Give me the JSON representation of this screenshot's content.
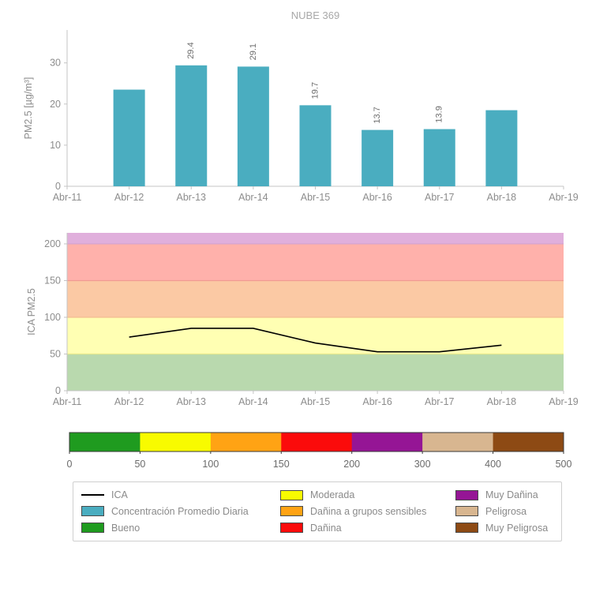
{
  "title": "NUBE 369",
  "chart_data": [
    {
      "type": "bar",
      "title": "NUBE 369",
      "ylabel": "PM2.5 [µg/m³]",
      "x_ticks": [
        "Abr-11",
        "Abr-12",
        "Abr-13",
        "Abr-14",
        "Abr-15",
        "Abr-16",
        "Abr-17",
        "Abr-18",
        "Abr-19"
      ],
      "categories": [
        "Abr-12",
        "Abr-13",
        "Abr-14",
        "Abr-15",
        "Abr-16",
        "Abr-17",
        "Abr-18"
      ],
      "values": [
        23.5,
        29.4,
        29.1,
        19.7,
        13.7,
        13.9,
        18.5
      ],
      "bar_labels": [
        "",
        "29.4",
        "29.1",
        "19.7",
        "13.7",
        "13.9",
        ""
      ],
      "yticks": [
        0,
        10,
        20,
        30
      ],
      "ylim": [
        0,
        38
      ],
      "bar_color": "#4aadc0",
      "grid": false
    },
    {
      "type": "line",
      "title": "",
      "ylabel": "ICA PM2.5",
      "x_ticks": [
        "Abr-11",
        "Abr-12",
        "Abr-13",
        "Abr-14",
        "Abr-15",
        "Abr-16",
        "Abr-17",
        "Abr-18",
        "Abr-19"
      ],
      "categories": [
        "Abr-12",
        "Abr-13",
        "Abr-14",
        "Abr-15",
        "Abr-16",
        "Abr-17",
        "Abr-18"
      ],
      "values": [
        73,
        85,
        85,
        65,
        53,
        53,
        62
      ],
      "yticks": [
        0,
        50,
        100,
        150,
        200
      ],
      "ylim": [
        0,
        215
      ],
      "line_color": "#000000",
      "bands": [
        {
          "from": 0,
          "to": 50,
          "color": "#b9d9ae",
          "edge": ""
        },
        {
          "from": 50,
          "to": 100,
          "color": "#ffffb3",
          "edge": "#e6e98e"
        },
        {
          "from": 100,
          "to": 150,
          "color": "#fbc9a4",
          "edge": "#f3bd92"
        },
        {
          "from": 150,
          "to": 200,
          "color": "#ffb1ab",
          "edge": "#f09a93"
        },
        {
          "from": 200,
          "to": 215,
          "color": "#e0afdc",
          "edge": "#d3a2cf"
        }
      ],
      "grid": false
    },
    {
      "type": "colorbar",
      "ticks": [
        "0",
        "50",
        "100",
        "150",
        "200",
        "300",
        "400",
        "500"
      ],
      "segments": [
        {
          "name": "Bueno",
          "color": "#1f9b1f"
        },
        {
          "name": "Moderada",
          "color": "#f8fb00"
        },
        {
          "name": "Dañina a grupos sensibles",
          "color": "#ffa314"
        },
        {
          "name": "Dañina",
          "color": "#fb0b0b"
        },
        {
          "name": "Muy Dañina",
          "color": "#951595"
        },
        {
          "name": "Peligrosa",
          "color": "#d8b690"
        },
        {
          "name": "Muy Peligrosa",
          "color": "#8d4a14"
        }
      ]
    }
  ],
  "legend": {
    "items": [
      {
        "label": "ICA",
        "swatch": "line",
        "color": "#000000"
      },
      {
        "label": "Concentración Promedio Diaria",
        "swatch": "rect",
        "color": "#4aadc0"
      },
      {
        "label": "Bueno",
        "swatch": "rect",
        "color": "#1f9b1f"
      },
      {
        "label": "Moderada",
        "swatch": "rect",
        "color": "#f8fb00"
      },
      {
        "label": "Dañina a grupos sensibles",
        "swatch": "rect",
        "color": "#ffa314"
      },
      {
        "label": "Dañina",
        "swatch": "rect",
        "color": "#fb0b0b"
      },
      {
        "label": "Muy Dañina",
        "swatch": "rect",
        "color": "#951595"
      },
      {
        "label": "Peligrosa",
        "swatch": "rect",
        "color": "#d8b690"
      },
      {
        "label": "Muy Peligrosa",
        "swatch": "rect",
        "color": "#8d4a14"
      }
    ]
  }
}
